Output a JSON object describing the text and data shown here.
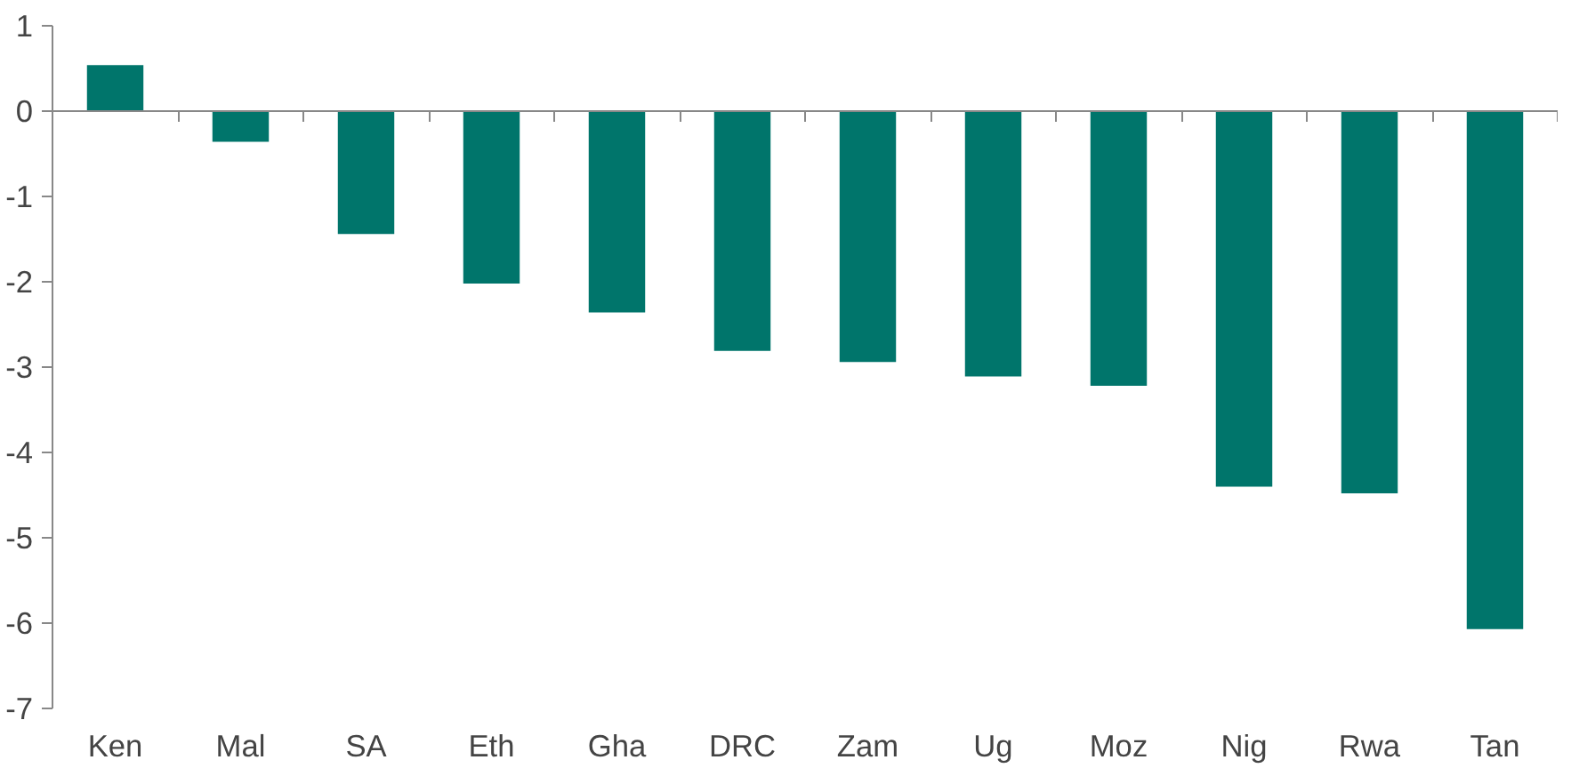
{
  "chart_data": {
    "type": "bar",
    "categories": [
      "Ken",
      "Mal",
      "SA",
      "Eth",
      "Gha",
      "DRC",
      "Zam",
      "Ug",
      "Moz",
      "Nig",
      "Rwa",
      "Tan"
    ],
    "values": [
      0.54,
      -0.36,
      -1.44,
      -2.02,
      -2.36,
      -2.81,
      -2.94,
      -3.11,
      -3.22,
      -4.4,
      -4.48,
      -6.07
    ],
    "color": "#00756b",
    "ylim": [
      -7,
      1
    ],
    "yticks": [
      -7,
      -6,
      -5,
      -4,
      -3,
      -2,
      -1,
      0,
      1
    ]
  }
}
